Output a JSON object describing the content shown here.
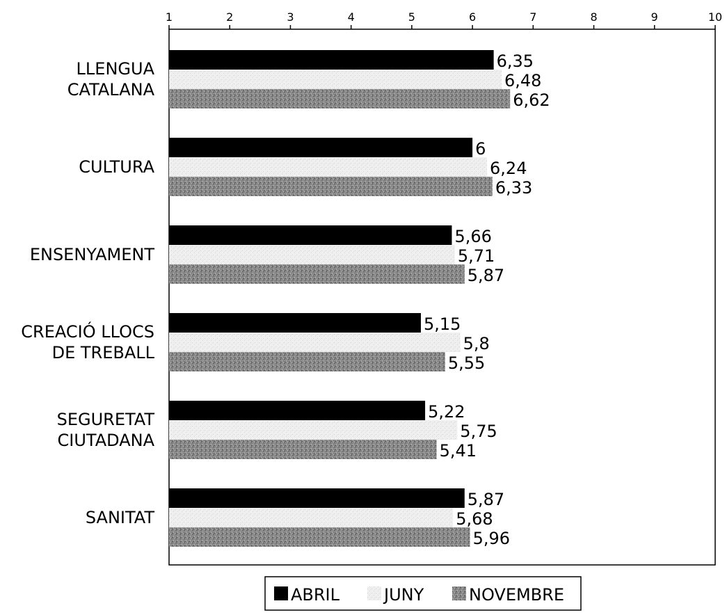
{
  "chart_data": {
    "type": "bar",
    "orientation": "horizontal",
    "categories": [
      [
        "LLENGUA",
        "CATALANA"
      ],
      [
        "CULTURA"
      ],
      [
        "ENSENYAMENT"
      ],
      [
        "CREACIÓ LLOCS",
        "DE TREBALL"
      ],
      [
        "SEGURETAT",
        "CIUTADANA"
      ],
      [
        "SANITAT"
      ]
    ],
    "series": [
      {
        "name": "ABRIL",
        "values": [
          6.35,
          6,
          5.66,
          5.15,
          5.22,
          5.87
        ],
        "labels": [
          "6,35",
          "6",
          "5,66",
          "5,15",
          "5,22",
          "5,87"
        ],
        "color": "#000000"
      },
      {
        "name": "JUNY",
        "values": [
          6.48,
          6.24,
          5.71,
          5.8,
          5.75,
          5.68
        ],
        "labels": [
          "6,48",
          "6,24",
          "5,71",
          "5,8",
          "5,75",
          "5,68"
        ],
        "color": "#e6e6e6"
      },
      {
        "name": "NOVEMBRE",
        "values": [
          6.62,
          6.33,
          5.87,
          5.55,
          5.41,
          5.96
        ],
        "labels": [
          "6,62",
          "6,33",
          "5,87",
          "5,55",
          "5,41",
          "5,96"
        ],
        "color": "#7a7a7a"
      }
    ],
    "xlim": [
      1,
      10
    ],
    "xticks": [
      "1",
      "2",
      "3",
      "4",
      "5",
      "6",
      "7",
      "8",
      "9",
      "10"
    ],
    "xaxis_position": "top",
    "grid": false,
    "legend_position": "bottom"
  }
}
